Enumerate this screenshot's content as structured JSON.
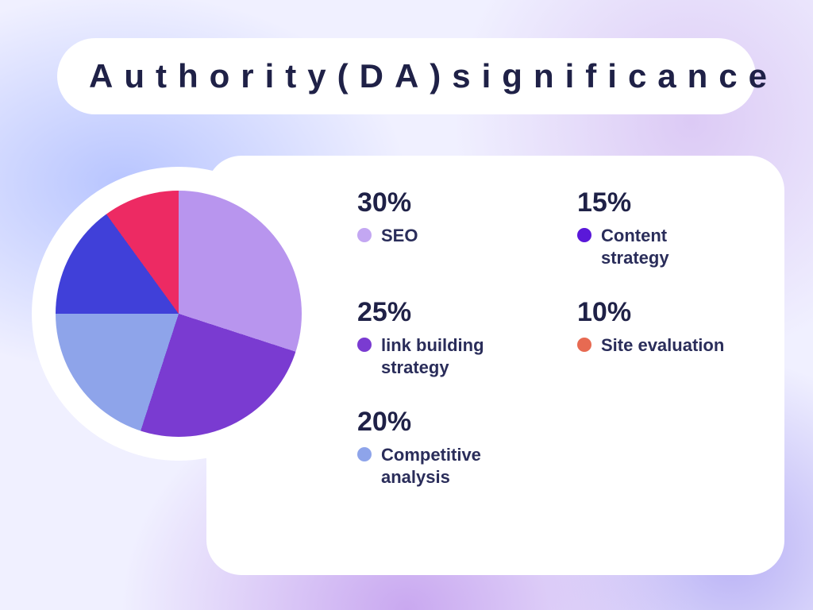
{
  "title": "Authority(DA)significance",
  "chart": {
    "type": "pie",
    "background_color": "#ffffff",
    "ring_color": "#ffffff",
    "start_angle_deg": 0,
    "slices": [
      {
        "label": "SEO",
        "value": 30,
        "color": "#b895ee"
      },
      {
        "label": "link building strategy",
        "value": 25,
        "color": "#7a3bd1"
      },
      {
        "label": "Competitive analysis",
        "value": 20,
        "color": "#8ea4ea"
      },
      {
        "label": "Content strategy",
        "value": 15,
        "color": "#4040d9"
      },
      {
        "label": "Site evaluation",
        "value": 10,
        "color": "#ed2a63"
      }
    ]
  },
  "legend": {
    "title_color": "#1f2147",
    "label_color": "#2a2d5a",
    "pct_fontsize": 34,
    "label_fontsize": 22,
    "items": [
      {
        "pct": "30%",
        "label": "SEO",
        "dot_color": "#c3a7f2"
      },
      {
        "pct": "15%",
        "label": "Content strategy",
        "dot_color": "#5a18d9"
      },
      {
        "pct": "25%",
        "label": "link building strategy",
        "dot_color": "#7a3bd1"
      },
      {
        "pct": "10%",
        "label": "Site evaluation",
        "dot_color": "#e76a52"
      },
      {
        "pct": "20%",
        "label": "Competitive analysis",
        "dot_color": "#8ea4ea"
      }
    ]
  }
}
